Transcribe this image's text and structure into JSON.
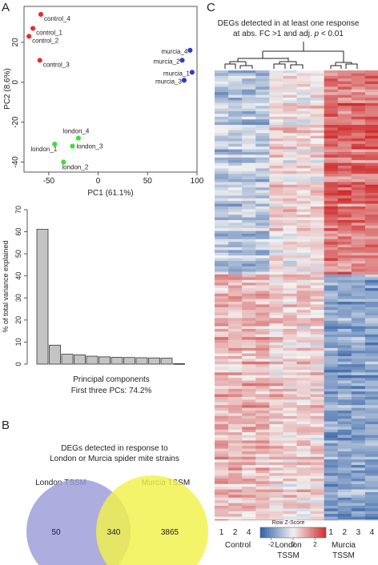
{
  "panels": {
    "a": "A",
    "b": "B",
    "c": "C"
  },
  "colors": {
    "control": "#e23030",
    "london": "#3fdc3f",
    "murcia": "#2c3fc4",
    "bar_fill": "#c4c4c4",
    "venn_london": "#9b9bd9",
    "venn_murcia": "#f2f24a",
    "heat_low": "#2f5fa6",
    "heat_mid": "#f2f2f2",
    "heat_high": "#cf2d2d"
  },
  "chart_data": [
    {
      "type": "scatter",
      "panel": "A",
      "xlabel": "PC1 (61.1%)",
      "ylabel": "PC2 (8.6%)",
      "xlim": [
        -75,
        100
      ],
      "ylim": [
        -45,
        38
      ],
      "xticks": [
        -50,
        0,
        50,
        100
      ],
      "yticks": [
        -40,
        -20,
        0,
        20
      ],
      "points": [
        {
          "label": "control_4",
          "group": "control",
          "x": -58,
          "y": 34
        },
        {
          "label": "control_1",
          "group": "control",
          "x": -66,
          "y": 27
        },
        {
          "label": "control_2",
          "group": "control",
          "x": -70,
          "y": 23
        },
        {
          "label": "control_3",
          "group": "control",
          "x": -59,
          "y": 11
        },
        {
          "label": "murcia_4",
          "group": "murcia",
          "x": 93,
          "y": 16
        },
        {
          "label": "murcia_2",
          "group": "murcia",
          "x": 85,
          "y": 11
        },
        {
          "label": "murcia_1",
          "group": "murcia",
          "x": 95,
          "y": 5
        },
        {
          "label": "murcia_3",
          "group": "murcia",
          "x": 87,
          "y": 1
        },
        {
          "label": "london_4",
          "group": "london",
          "x": -20,
          "y": -28
        },
        {
          "label": "london_1",
          "group": "london",
          "x": -44,
          "y": -31
        },
        {
          "label": "london_3",
          "group": "london",
          "x": -26,
          "y": -32
        },
        {
          "label": "london_2",
          "group": "london",
          "x": -35,
          "y": -40
        }
      ]
    },
    {
      "type": "bar",
      "panel": "A",
      "ylabel": "% of total variance explained",
      "xlabel": "Principal components",
      "note": "First three PCs: 74.2%",
      "ylim": [
        0,
        70
      ],
      "yticks": [
        0,
        10,
        20,
        30,
        40,
        50,
        60,
        70
      ],
      "values": [
        61.1,
        8.6,
        4.5,
        4.2,
        3.6,
        3.3,
        3.1,
        3.0,
        2.9,
        2.8,
        2.7,
        0.2
      ]
    },
    {
      "type": "heatmap",
      "panel": "C",
      "title_line1": "DEGs detected in at least one response",
      "title_line2": "at abs. FC >1 and adj.",
      "title_p": "p",
      "title_tail": "< 0.01",
      "columns": [
        "1",
        "2",
        "4",
        "3",
        "1",
        "2",
        "3",
        "4",
        "1",
        "2",
        "3",
        "4"
      ],
      "groups": [
        {
          "line1": "Control",
          "line2": ""
        },
        {
          "line1": "London",
          "line2": "TSSM"
        },
        {
          "line1": "Murcia",
          "line2": "TSSM"
        }
      ],
      "block_means": [
        [
          -0.9,
          -0.9,
          -0.9,
          -0.9,
          0.3,
          0.3,
          0.3,
          0.3,
          1.9,
          1.9,
          1.9,
          1.9
        ],
        [
          0.9,
          0.9,
          0.9,
          0.9,
          0.5,
          0.5,
          0.5,
          0.5,
          -1.6,
          -1.6,
          -1.6,
          -1.6
        ]
      ],
      "legend_title": "Row Z-Score",
      "legend_ticks": [
        "-2",
        "0",
        "2"
      ],
      "legend_range": [
        -3,
        3
      ]
    },
    {
      "type": "venn",
      "panel": "B",
      "title_line1": "DEGs detected in response to",
      "title_line2": "London or Murcia spider mite strains",
      "sets": [
        {
          "name": "London TSSM",
          "only": "50"
        },
        {
          "name": "Murcia TSSM",
          "only": "3865"
        }
      ],
      "overlap": "340"
    }
  ]
}
